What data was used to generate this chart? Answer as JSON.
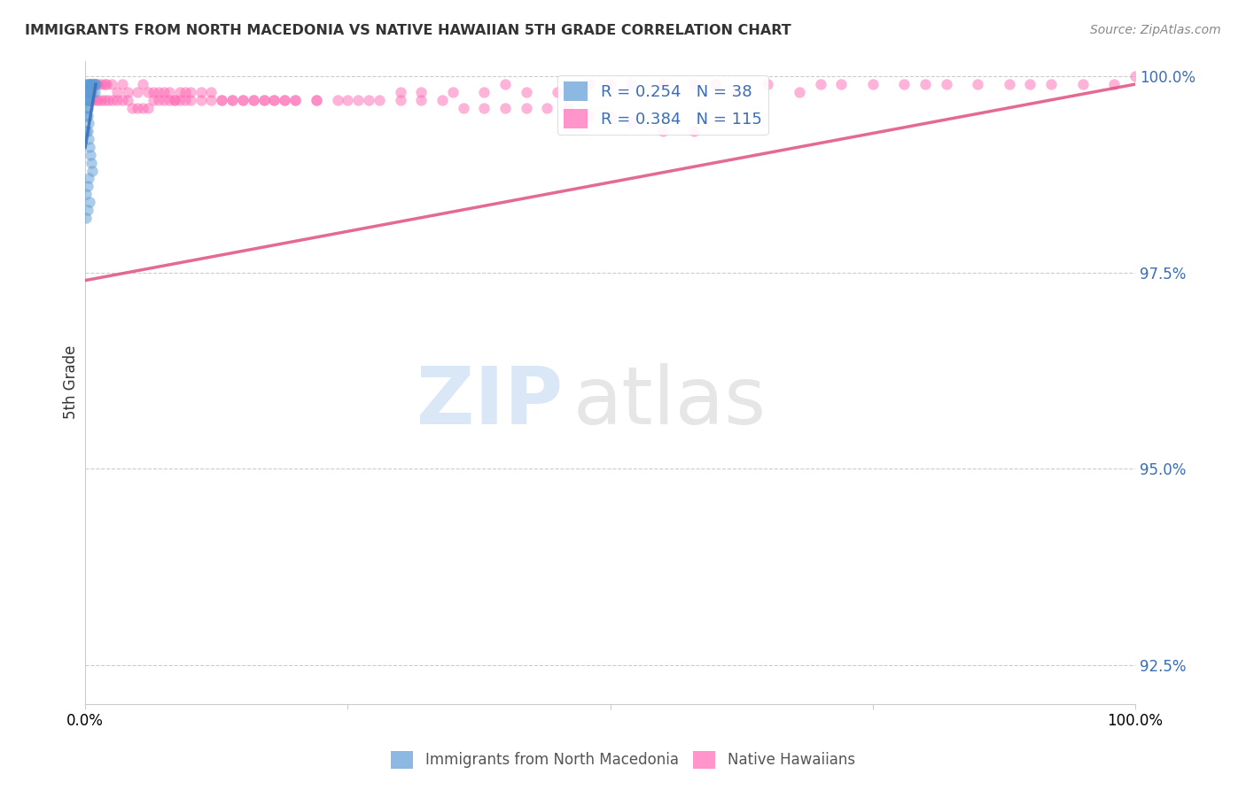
{
  "title": "IMMIGRANTS FROM NORTH MACEDONIA VS NATIVE HAWAIIAN 5TH GRADE CORRELATION CHART",
  "source": "Source: ZipAtlas.com",
  "ylabel": "5th Grade",
  "ytick_labels": [
    "100.0%",
    "97.5%",
    "95.0%",
    "92.5%"
  ],
  "ytick_values": [
    1.0,
    0.975,
    0.95,
    0.925
  ],
  "legend_entries": [
    {
      "label": "Immigrants from North Macedonia",
      "R": 0.254,
      "N": 38
    },
    {
      "label": "Native Hawaiians",
      "R": 0.384,
      "N": 115
    }
  ],
  "blue_scatter_x": [
    0.001,
    0.002,
    0.003,
    0.004,
    0.005,
    0.006,
    0.007,
    0.008,
    0.009,
    0.01,
    0.001,
    0.002,
    0.003,
    0.005,
    0.007,
    0.009,
    0.002,
    0.004,
    0.001,
    0.003,
    0.001,
    0.002,
    0.001,
    0.002,
    0.003,
    0.001,
    0.002,
    0.003,
    0.004,
    0.005,
    0.006,
    0.007,
    0.003,
    0.002,
    0.001,
    0.004,
    0.002,
    0.001
  ],
  "blue_scatter_y": [
    0.999,
    0.999,
    0.999,
    0.999,
    0.999,
    0.999,
    0.999,
    0.999,
    0.999,
    0.999,
    0.998,
    0.998,
    0.998,
    0.998,
    0.998,
    0.998,
    0.997,
    0.997,
    0.997,
    0.997,
    0.996,
    0.996,
    0.995,
    0.995,
    0.994,
    0.993,
    0.993,
    0.992,
    0.991,
    0.99,
    0.989,
    0.988,
    0.987,
    0.986,
    0.985,
    0.984,
    0.983,
    0.982
  ],
  "pink_scatter_x": [
    0.005,
    0.008,
    0.01,
    0.012,
    0.015,
    0.018,
    0.02,
    0.025,
    0.03,
    0.035,
    0.04,
    0.05,
    0.055,
    0.06,
    0.065,
    0.07,
    0.075,
    0.08,
    0.085,
    0.09,
    0.095,
    0.1,
    0.11,
    0.12,
    0.13,
    0.14,
    0.15,
    0.16,
    0.17,
    0.18,
    0.19,
    0.2,
    0.22,
    0.25,
    0.27,
    0.3,
    0.32,
    0.35,
    0.38,
    0.4,
    0.42,
    0.45,
    0.48,
    0.5,
    0.52,
    0.55,
    0.58,
    0.6,
    0.62,
    0.65,
    0.68,
    0.7,
    0.72,
    0.75,
    0.78,
    0.8,
    0.82,
    0.85,
    0.88,
    0.9,
    0.92,
    0.95,
    0.98,
    1.0,
    0.003,
    0.006,
    0.009,
    0.012,
    0.015,
    0.018,
    0.022,
    0.026,
    0.03,
    0.035,
    0.04,
    0.045,
    0.05,
    0.055,
    0.06,
    0.065,
    0.07,
    0.075,
    0.08,
    0.085,
    0.09,
    0.095,
    0.1,
    0.11,
    0.12,
    0.13,
    0.14,
    0.15,
    0.16,
    0.17,
    0.18,
    0.19,
    0.2,
    0.22,
    0.24,
    0.26,
    0.28,
    0.3,
    0.32,
    0.34,
    0.36,
    0.38,
    0.4,
    0.42,
    0.44,
    0.46,
    0.48,
    0.5,
    0.52,
    0.55,
    0.58
  ],
  "pink_scatter_y": [
    0.999,
    0.999,
    0.999,
    0.999,
    0.999,
    0.999,
    0.999,
    0.999,
    0.998,
    0.999,
    0.998,
    0.998,
    0.999,
    0.998,
    0.998,
    0.998,
    0.998,
    0.998,
    0.997,
    0.998,
    0.998,
    0.998,
    0.998,
    0.998,
    0.997,
    0.997,
    0.997,
    0.997,
    0.997,
    0.997,
    0.997,
    0.997,
    0.997,
    0.997,
    0.997,
    0.998,
    0.998,
    0.998,
    0.998,
    0.999,
    0.998,
    0.998,
    0.999,
    0.999,
    0.999,
    0.999,
    0.999,
    0.999,
    0.998,
    0.999,
    0.998,
    0.999,
    0.999,
    0.999,
    0.999,
    0.999,
    0.999,
    0.999,
    0.999,
    0.999,
    0.999,
    0.999,
    0.999,
    1.0,
    0.998,
    0.997,
    0.997,
    0.997,
    0.997,
    0.997,
    0.997,
    0.997,
    0.997,
    0.997,
    0.997,
    0.996,
    0.996,
    0.996,
    0.996,
    0.997,
    0.997,
    0.997,
    0.997,
    0.997,
    0.997,
    0.997,
    0.997,
    0.997,
    0.997,
    0.997,
    0.997,
    0.997,
    0.997,
    0.997,
    0.997,
    0.997,
    0.997,
    0.997,
    0.997,
    0.997,
    0.997,
    0.997,
    0.997,
    0.997,
    0.996,
    0.996,
    0.996,
    0.996,
    0.996,
    0.996,
    0.995,
    0.995,
    0.994,
    0.993,
    0.993
  ],
  "blue_line_x": [
    0.0,
    0.01
  ],
  "blue_line_y": [
    0.991,
    0.999
  ],
  "pink_line_x": [
    0.0,
    1.0
  ],
  "pink_line_y": [
    0.974,
    0.999
  ],
  "scatter_size": 80,
  "scatter_alpha": 0.5,
  "line_alpha": 0.85,
  "blue_color": "#5B9BD5",
  "pink_color": "#FF69B4",
  "blue_line_color": "#3A6DB5",
  "pink_line_color": "#E05080",
  "legend_text_color": "#3A6DB5",
  "right_axis_color": "#3A6DB5",
  "watermark_zip_color": "#C0D8F0",
  "watermark_atlas_color": "#C8C8C8",
  "xlim": [
    0.0,
    1.0
  ],
  "ylim": [
    0.92,
    1.002
  ],
  "figsize": [
    14.06,
    8.92
  ],
  "dpi": 100
}
